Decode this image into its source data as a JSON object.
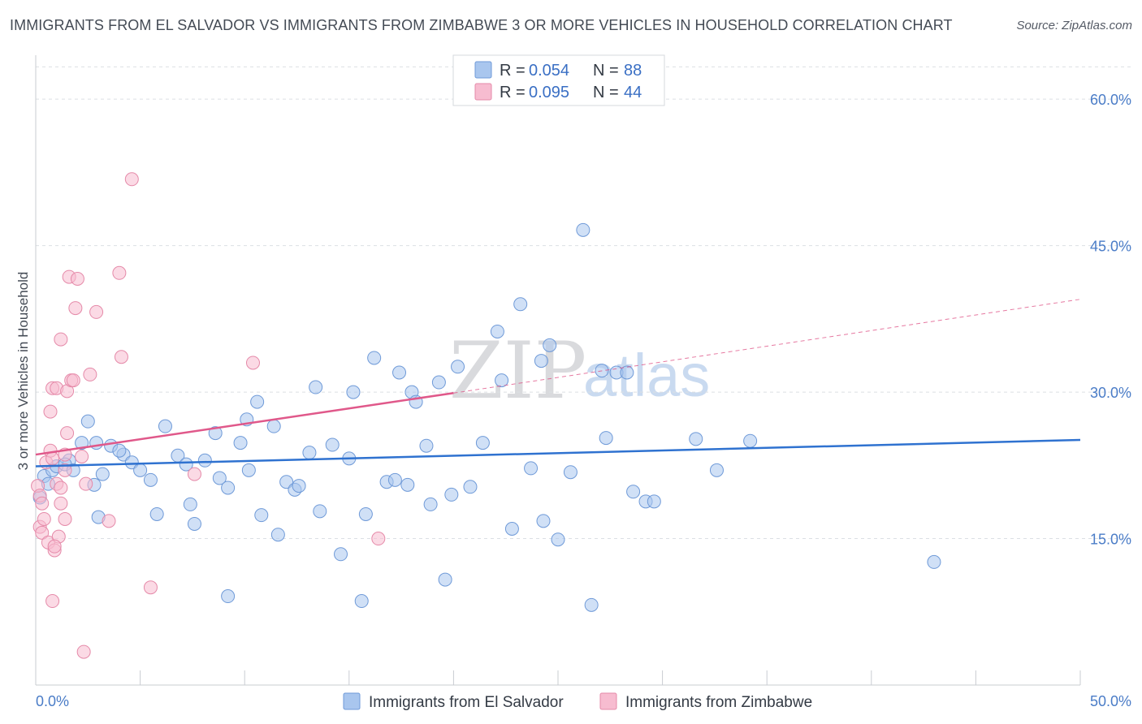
{
  "title": "IMMIGRANTS FROM EL SALVADOR VS IMMIGRANTS FROM ZIMBABWE 3 OR MORE VEHICLES IN HOUSEHOLD CORRELATION CHART",
  "source": "Source: ZipAtlas.com",
  "watermark": {
    "zip": "ZIP",
    "atlas": "atlas"
  },
  "colors": {
    "blue_fill": "#a9c6ee",
    "blue_stroke": "#6f9ad8",
    "blue_line": "#2f72d0",
    "pink_fill": "#f7bcd0",
    "pink_stroke": "#e58aa9",
    "pink_line": "#e0588a",
    "grid": "#dcdfe4",
    "tick_text": "#4a7cc7"
  },
  "legend_stats": [
    {
      "r_label": "R =",
      "r_value": "0.054",
      "n_label": "N =",
      "n_value": "88"
    },
    {
      "r_label": "R =",
      "r_value": "0.095",
      "n_label": "N =",
      "n_value": "44"
    }
  ],
  "chart_data": {
    "type": "scatter",
    "ylabel": "3 or more Vehicles in Household",
    "xlabel": "",
    "xlim": [
      0,
      50
    ],
    "ylim": [
      0,
      64
    ],
    "x_tick_labels": [
      "0.0%",
      "50.0%"
    ],
    "y_ticks": [
      15,
      30,
      45,
      60
    ],
    "y_tick_labels": [
      "15.0%",
      "30.0%",
      "45.0%",
      "60.0%"
    ],
    "grid": "horizontal dashed",
    "legend_position": "bottom-center",
    "series": [
      {
        "name": "Immigrants from El Salvador",
        "color": "#a9c6ee",
        "trend": {
          "x": [
            0,
            50
          ],
          "y": [
            22.4,
            25.1
          ],
          "style": "solid"
        },
        "points": [
          [
            0.2,
            19.2
          ],
          [
            0.4,
            21.4
          ],
          [
            0.8,
            22.0
          ],
          [
            1.0,
            22.4
          ],
          [
            1.6,
            23.0
          ],
          [
            2.5,
            27.0
          ],
          [
            2.9,
            24.8
          ],
          [
            3.6,
            24.5
          ],
          [
            4.2,
            23.6
          ],
          [
            4.6,
            22.8
          ],
          [
            2.2,
            24.8
          ],
          [
            2.8,
            20.5
          ],
          [
            3.0,
            17.2
          ],
          [
            4.0,
            24.0
          ],
          [
            5.0,
            22.0
          ],
          [
            5.5,
            21.0
          ],
          [
            5.8,
            17.5
          ],
          [
            6.2,
            26.5
          ],
          [
            6.8,
            23.5
          ],
          [
            7.2,
            22.6
          ],
          [
            7.4,
            18.5
          ],
          [
            7.6,
            16.5
          ],
          [
            8.1,
            23.0
          ],
          [
            8.6,
            25.8
          ],
          [
            8.8,
            21.2
          ],
          [
            9.2,
            20.2
          ],
          [
            9.8,
            24.8
          ],
          [
            10.1,
            27.2
          ],
          [
            10.6,
            29.0
          ],
          [
            10.8,
            17.4
          ],
          [
            10.2,
            22.0
          ],
          [
            11.4,
            26.5
          ],
          [
            11.6,
            15.4
          ],
          [
            12.0,
            20.8
          ],
          [
            12.4,
            20.0
          ],
          [
            12.6,
            20.4
          ],
          [
            13.1,
            23.8
          ],
          [
            13.4,
            30.5
          ],
          [
            13.6,
            17.8
          ],
          [
            14.2,
            24.6
          ],
          [
            14.6,
            13.4
          ],
          [
            15.0,
            23.2
          ],
          [
            15.2,
            30.0
          ],
          [
            15.6,
            8.6
          ],
          [
            15.8,
            17.5
          ],
          [
            16.2,
            33.5
          ],
          [
            16.8,
            20.8
          ],
          [
            17.2,
            21.0
          ],
          [
            17.4,
            32.0
          ],
          [
            17.8,
            20.5
          ],
          [
            18.0,
            30.0
          ],
          [
            18.2,
            29.0
          ],
          [
            18.7,
            24.5
          ],
          [
            18.9,
            18.5
          ],
          [
            19.3,
            31.0
          ],
          [
            19.6,
            10.8
          ],
          [
            19.9,
            19.5
          ],
          [
            20.2,
            32.6
          ],
          [
            20.8,
            20.3
          ],
          [
            21.4,
            24.8
          ],
          [
            22.1,
            36.2
          ],
          [
            22.3,
            31.2
          ],
          [
            22.8,
            16.0
          ],
          [
            23.2,
            39.0
          ],
          [
            23.7,
            22.2
          ],
          [
            24.2,
            33.2
          ],
          [
            24.3,
            16.8
          ],
          [
            24.6,
            34.8
          ],
          [
            25.0,
            14.9
          ],
          [
            25.6,
            21.8
          ],
          [
            26.2,
            46.6
          ],
          [
            26.6,
            8.2
          ],
          [
            27.1,
            32.2
          ],
          [
            27.3,
            25.3
          ],
          [
            27.8,
            32.0
          ],
          [
            28.3,
            32.0
          ],
          [
            28.6,
            19.8
          ],
          [
            29.2,
            18.8
          ],
          [
            29.6,
            18.8
          ],
          [
            31.6,
            25.2
          ],
          [
            32.6,
            22.0
          ],
          [
            34.2,
            25.0
          ],
          [
            43.0,
            12.6
          ],
          [
            9.2,
            9.1
          ],
          [
            1.4,
            22.6
          ],
          [
            1.8,
            22.0
          ],
          [
            0.6,
            20.6
          ],
          [
            3.2,
            21.6
          ]
        ]
      },
      {
        "name": "Immigrants from Zimbabwe",
        "color": "#f7bcd0",
        "trend": {
          "x": [
            0,
            20
          ],
          "y": [
            23.6,
            29.9
          ],
          "style": "solid",
          "extension": {
            "x": [
              20,
              50
            ],
            "y": [
              29.9,
              39.5
            ],
            "style": "dashed"
          }
        },
        "points": [
          [
            0.1,
            20.4
          ],
          [
            0.2,
            19.4
          ],
          [
            0.3,
            18.6
          ],
          [
            0.2,
            16.2
          ],
          [
            0.3,
            15.6
          ],
          [
            0.4,
            17.0
          ],
          [
            0.5,
            22.8
          ],
          [
            0.6,
            14.6
          ],
          [
            0.7,
            28.0
          ],
          [
            0.7,
            24.0
          ],
          [
            0.8,
            23.2
          ],
          [
            0.9,
            13.8
          ],
          [
            0.8,
            8.6
          ],
          [
            0.8,
            30.4
          ],
          [
            1.0,
            30.4
          ],
          [
            1.0,
            20.6
          ],
          [
            1.1,
            15.2
          ],
          [
            1.2,
            35.4
          ],
          [
            1.2,
            18.6
          ],
          [
            1.4,
            17.0
          ],
          [
            1.4,
            22.0
          ],
          [
            1.4,
            23.6
          ],
          [
            1.5,
            25.8
          ],
          [
            1.5,
            30.1
          ],
          [
            1.6,
            41.8
          ],
          [
            1.7,
            31.2
          ],
          [
            1.8,
            31.2
          ],
          [
            1.9,
            38.6
          ],
          [
            2.0,
            41.6
          ],
          [
            2.2,
            23.4
          ],
          [
            2.3,
            3.4
          ],
          [
            2.4,
            20.6
          ],
          [
            2.6,
            31.8
          ],
          [
            2.9,
            38.2
          ],
          [
            3.5,
            16.8
          ],
          [
            4.1,
            33.6
          ],
          [
            4.0,
            42.2
          ],
          [
            4.6,
            51.8
          ],
          [
            5.5,
            10.0
          ],
          [
            7.6,
            21.6
          ],
          [
            10.4,
            33.0
          ],
          [
            16.4,
            15.0
          ],
          [
            0.9,
            14.2
          ],
          [
            1.2,
            20.2
          ]
        ]
      }
    ]
  }
}
